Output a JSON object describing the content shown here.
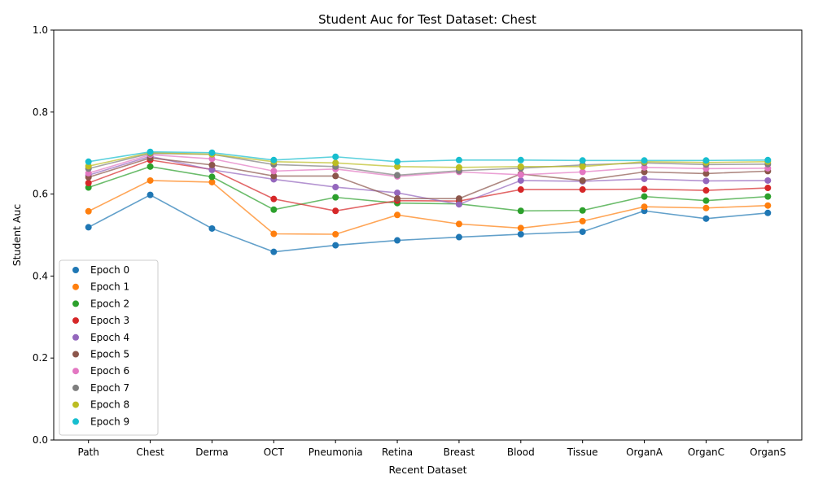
{
  "chart_data": {
    "type": "line",
    "title": "Student Auc for Test Dataset: Chest",
    "xlabel": "Recent Dataset",
    "ylabel": "Student Auc",
    "ylim": [
      0,
      1
    ],
    "yticks": [
      "0.0",
      "0.2",
      "0.4",
      "0.6",
      "0.8",
      "1.0"
    ],
    "grid": false,
    "legend_position": "lower-left",
    "categories": [
      "Path",
      "Chest",
      "Derma",
      "OCT",
      "Pneumonia",
      "Retina",
      "Breast",
      "Blood",
      "Tissue",
      "OrganA",
      "OrganC",
      "OrganS"
    ],
    "series": [
      {
        "name": "Epoch 0",
        "color": "#1f77b4",
        "values": [
          0.519,
          0.598,
          0.516,
          0.459,
          0.475,
          0.487,
          0.495,
          0.502,
          0.508,
          0.559,
          0.54,
          0.554
        ]
      },
      {
        "name": "Epoch 1",
        "color": "#ff7f0e",
        "values": [
          0.558,
          0.633,
          0.629,
          0.503,
          0.502,
          0.549,
          0.527,
          0.517,
          0.534,
          0.569,
          0.566,
          0.572
        ]
      },
      {
        "name": "Epoch 2",
        "color": "#2ca02c",
        "values": [
          0.616,
          0.667,
          0.642,
          0.562,
          0.592,
          0.578,
          0.576,
          0.559,
          0.56,
          0.594,
          0.584,
          0.594
        ]
      },
      {
        "name": "Epoch 3",
        "color": "#d62728",
        "values": [
          0.627,
          0.683,
          0.66,
          0.588,
          0.559,
          0.584,
          0.583,
          0.611,
          0.611,
          0.612,
          0.609,
          0.615
        ]
      },
      {
        "name": "Epoch 4",
        "color": "#9467bd",
        "values": [
          0.646,
          0.692,
          0.659,
          0.636,
          0.617,
          0.603,
          0.575,
          0.633,
          0.631,
          0.637,
          0.632,
          0.633
        ]
      },
      {
        "name": "Epoch 5",
        "color": "#8c564b",
        "values": [
          0.641,
          0.688,
          0.671,
          0.644,
          0.644,
          0.589,
          0.589,
          0.649,
          0.633,
          0.654,
          0.65,
          0.656
        ]
      },
      {
        "name": "Epoch 6",
        "color": "#e377c2",
        "values": [
          0.651,
          0.696,
          0.686,
          0.656,
          0.661,
          0.643,
          0.654,
          0.647,
          0.654,
          0.665,
          0.662,
          0.663
        ]
      },
      {
        "name": "Epoch 7",
        "color": "#7f7f7f",
        "values": [
          0.662,
          0.699,
          0.697,
          0.672,
          0.667,
          0.646,
          0.657,
          0.663,
          0.671,
          0.676,
          0.672,
          0.673
        ]
      },
      {
        "name": "Epoch 8",
        "color": "#bcbd22",
        "values": [
          0.668,
          0.701,
          0.697,
          0.679,
          0.676,
          0.667,
          0.665,
          0.667,
          0.667,
          0.679,
          0.677,
          0.679
        ]
      },
      {
        "name": "Epoch 9",
        "color": "#17becf",
        "values": [
          0.679,
          0.703,
          0.701,
          0.683,
          0.691,
          0.679,
          0.683,
          0.683,
          0.682,
          0.682,
          0.682,
          0.683
        ]
      }
    ]
  }
}
